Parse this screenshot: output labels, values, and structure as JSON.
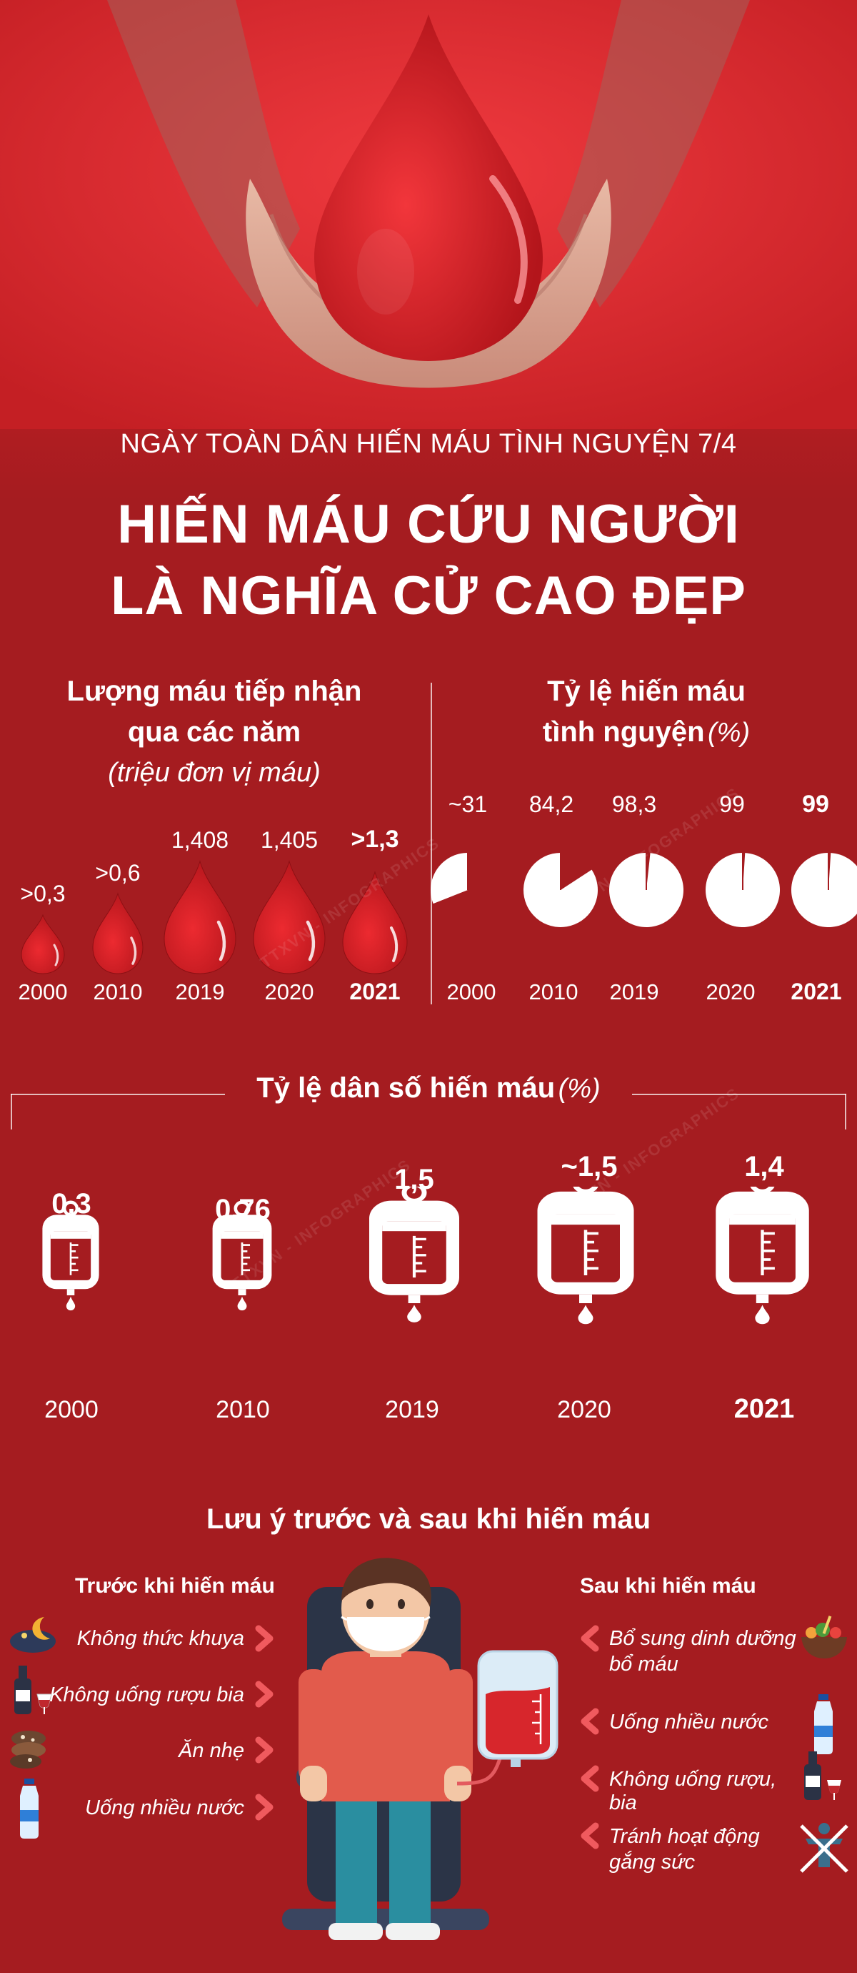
{
  "header": {
    "supertitle": "NGÀY TOÀN DÂN HIẾN MÁU TÌNH NGUYỆN 7/4",
    "title_line1": "HIẾN MÁU CỨU NGƯỜI",
    "title_line2": "LÀ NGHĨA CỬ CAO ĐẸP"
  },
  "blood_volume": {
    "title_line1": "Lượng máu tiếp nhận",
    "title_line2": "qua các năm",
    "unit": "(triệu đơn vị máu)",
    "items": [
      {
        "year": "2000",
        "value": ">0,3"
      },
      {
        "year": "2010",
        "value": ">0,6"
      },
      {
        "year": "2019",
        "value": "1,408"
      },
      {
        "year": "2020",
        "value": "1,405"
      },
      {
        "year": "2021",
        "value": ">1,3"
      }
    ]
  },
  "voluntary_rate": {
    "title_line1": "Tỷ lệ hiến máu",
    "title_line2": "tình nguyện",
    "unit": "(%)",
    "items": [
      {
        "year": "2000",
        "value": "~31",
        "percent": 31
      },
      {
        "year": "2010",
        "value": "84,2",
        "percent": 84.2
      },
      {
        "year": "2019",
        "value": "98,3",
        "percent": 98.3
      },
      {
        "year": "2020",
        "value": "99",
        "percent": 99
      },
      {
        "year": "2021",
        "value": "99",
        "percent": 99
      }
    ]
  },
  "population_rate": {
    "title": "Tỷ lệ dân số hiến máu",
    "unit": "(%)",
    "items": [
      {
        "year": "2000",
        "value": "0,3"
      },
      {
        "year": "2010",
        "value": "0,76"
      },
      {
        "year": "2019",
        "value": "1,5"
      },
      {
        "year": "2020",
        "value": "~1,5"
      },
      {
        "year": "2021",
        "value": "1,4"
      }
    ]
  },
  "notes": {
    "title": "Lưu ý trước và sau khi hiến máu",
    "before": {
      "heading": "Trước khi hiến máu",
      "items": [
        {
          "text": "Không thức khuya",
          "icon": "moon-night-icon"
        },
        {
          "text": "Không uống rượu bia",
          "icon": "wine-bottle-icon"
        },
        {
          "text": "Ăn nhẹ",
          "icon": "cookies-icon"
        },
        {
          "text": "Uống nhiều nước",
          "icon": "water-bottle-icon"
        }
      ]
    },
    "after": {
      "heading": "Sau khi hiến máu",
      "items": [
        {
          "line1": "Bổ sung dinh dưỡng",
          "line2": "bổ máu",
          "icon": "food-bowl-icon"
        },
        {
          "line1": "Uống nhiều nước",
          "line2": "",
          "icon": "water-bottle-icon"
        },
        {
          "line1": "Không uống rượu, bia",
          "line2": "",
          "icon": "wine-bottle-icon"
        },
        {
          "line1": "Tránh hoạt động",
          "line2": "gắng sức",
          "icon": "no-exercise-icon"
        }
      ]
    }
  },
  "watermark": "TTXVN - INFOGRAPHICS",
  "colors": {
    "background": "#a51c20",
    "drop": "#d7262c",
    "white": "#ffffff"
  }
}
